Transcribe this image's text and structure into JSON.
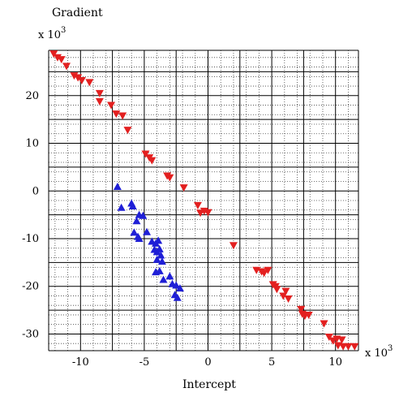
{
  "chart_data": {
    "type": "scatter",
    "ylabel": "Gradient",
    "xlabel": "Intercept",
    "x_multiplier": "x 10",
    "y_multiplier": "x 10",
    "multiplier_exponent": "3",
    "xlim": [
      -12.5,
      11.8
    ],
    "ylim": [
      -33.5,
      29.5
    ],
    "x_ticks": [
      -10,
      -5,
      0,
      5,
      10
    ],
    "y_ticks": [
      20,
      10,
      0,
      -10,
      -20,
      -30
    ],
    "grid": true,
    "series": [
      {
        "marker": "triangle-down",
        "color": "#e32020",
        "points": [
          [
            -12.1,
            28.8
          ],
          [
            -11.8,
            28.0
          ],
          [
            -11.5,
            27.6
          ],
          [
            -11.1,
            26.2
          ],
          [
            -10.5,
            24.2
          ],
          [
            -10.2,
            23.8
          ],
          [
            -9.9,
            23.2
          ],
          [
            -9.3,
            22.8
          ],
          [
            -8.5,
            20.5
          ],
          [
            -8.5,
            18.8
          ],
          [
            -7.6,
            18.0
          ],
          [
            -7.2,
            16.2
          ],
          [
            -6.7,
            15.8
          ],
          [
            -6.3,
            12.8
          ],
          [
            -4.9,
            7.8
          ],
          [
            -4.6,
            7.0
          ],
          [
            -4.4,
            6.4
          ],
          [
            -3.2,
            3.2
          ],
          [
            -3.0,
            2.8
          ],
          [
            -1.9,
            0.7
          ],
          [
            -0.8,
            -3.0
          ],
          [
            -0.6,
            -4.6
          ],
          [
            -0.3,
            -4.2
          ],
          [
            0.0,
            -4.5
          ],
          [
            2.0,
            -11.4
          ],
          [
            3.8,
            -16.6
          ],
          [
            4.2,
            -16.9
          ],
          [
            4.4,
            -17.2
          ],
          [
            4.7,
            -16.6
          ],
          [
            5.1,
            -19.6
          ],
          [
            5.3,
            -20.0
          ],
          [
            5.4,
            -20.6
          ],
          [
            5.9,
            -22.0
          ],
          [
            6.1,
            -21.0
          ],
          [
            6.3,
            -22.6
          ],
          [
            7.3,
            -24.8
          ],
          [
            7.4,
            -25.8
          ],
          [
            7.6,
            -26.2
          ],
          [
            7.9,
            -26.0
          ],
          [
            9.1,
            -27.8
          ],
          [
            9.5,
            -30.6
          ],
          [
            9.8,
            -31.4
          ],
          [
            10.1,
            -31.0
          ],
          [
            10.2,
            -32.4
          ],
          [
            10.5,
            -31.2
          ],
          [
            10.6,
            -32.6
          ],
          [
            11.0,
            -32.6
          ],
          [
            11.5,
            -32.6
          ]
        ]
      },
      {
        "marker": "triangle-up",
        "color": "#1f1fd6",
        "points": [
          [
            -7.1,
            0.9
          ],
          [
            -6.8,
            -3.5
          ],
          [
            -6.0,
            -2.6
          ],
          [
            -5.9,
            -3.2
          ],
          [
            -5.6,
            -6.3
          ],
          [
            -5.4,
            -5.0
          ],
          [
            -5.1,
            -5.2
          ],
          [
            -5.8,
            -8.7
          ],
          [
            -5.5,
            -9.6
          ],
          [
            -5.4,
            -10.0
          ],
          [
            -4.8,
            -8.6
          ],
          [
            -4.4,
            -10.6
          ],
          [
            -4.1,
            -11.0
          ],
          [
            -3.9,
            -10.4
          ],
          [
            -4.2,
            -12.3
          ],
          [
            -4.0,
            -12.8
          ],
          [
            -3.8,
            -12.2
          ],
          [
            -3.7,
            -13.5
          ],
          [
            -4.0,
            -14.4
          ],
          [
            -3.6,
            -14.8
          ],
          [
            -4.1,
            -17.0
          ],
          [
            -3.8,
            -16.8
          ],
          [
            -3.5,
            -18.6
          ],
          [
            -3.0,
            -17.9
          ],
          [
            -2.8,
            -19.5
          ],
          [
            -2.5,
            -19.8
          ],
          [
            -2.2,
            -20.4
          ],
          [
            -2.6,
            -21.8
          ],
          [
            -2.4,
            -22.4
          ]
        ]
      }
    ]
  }
}
